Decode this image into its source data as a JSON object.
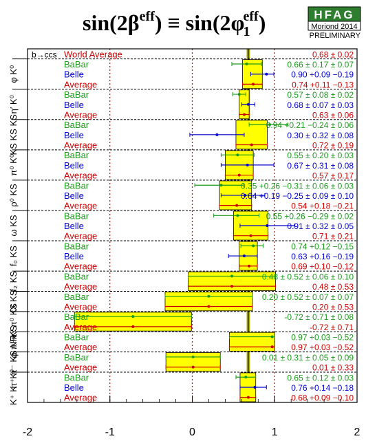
{
  "header": {
    "title_main": "sin(2β",
    "title_sup1": "eff",
    "title_mid": ") ≡ sin(2φ",
    "title_sub": "1",
    "title_sup2": "eff",
    "title_end": ")",
    "logo_text": "HFAG",
    "logo_sub": "Moriond 2014",
    "preliminary": "PRELIMINARY"
  },
  "colors": {
    "babar": "#1a9a1a",
    "belle": "#0000cc",
    "average": "#cc0000",
    "band": "#ffff00",
    "world_band": "#aaaa00",
    "logo_bg": "#2f7d2f"
  },
  "chart_data": {
    "type": "scatter",
    "xlim": [
      -2,
      2
    ],
    "x_ticks": [
      "-2",
      "-1",
      "0",
      "1",
      "2"
    ],
    "process_label": "b→ccs",
    "world_average": {
      "label": "World Average",
      "text": "0.68 ± 0.02",
      "value": 0.68,
      "error": 0.02
    },
    "groups": [
      {
        "label": "φ K⁰",
        "rows": [
          {
            "exp": "BaBar",
            "text": "0.66 ± 0.17 ± 0.07",
            "value": 0.66,
            "err": 0.18
          },
          {
            "exp": "Belle",
            "text": "0.90 +0.09 −0.19",
            "value": 0.9,
            "el": 0.19,
            "eh": 0.09
          },
          {
            "exp": "Average",
            "text": "0.74 +0.11 −0.13",
            "value": 0.74,
            "el": 0.13,
            "eh": 0.11
          }
        ]
      },
      {
        "label": "η′ K⁰",
        "rows": [
          {
            "exp": "BaBar",
            "text": "0.57 ± 0.08 ± 0.02",
            "value": 0.57,
            "err": 0.08
          },
          {
            "exp": "Belle",
            "text": "0.68 ± 0.07 ± 0.03",
            "value": 0.68,
            "err": 0.08
          },
          {
            "exp": "Average",
            "text": "0.63 ± 0.06",
            "value": 0.63,
            "err": 0.06
          }
        ]
      },
      {
        "label": "KS KS KS",
        "rows": [
          {
            "exp": "BaBar",
            "text": "0.94 +0.21 −0.24 ± 0.06",
            "value": 0.94,
            "el": 0.25,
            "eh": 0.22
          },
          {
            "exp": "Belle",
            "text": "0.30 ± 0.32 ± 0.08",
            "value": 0.3,
            "err": 0.33
          },
          {
            "exp": "Average",
            "text": "0.72 ± 0.19",
            "value": 0.72,
            "err": 0.19
          }
        ]
      },
      {
        "label": "π⁰ K⁰",
        "rows": [
          {
            "exp": "BaBar",
            "text": "0.55 ± 0.20 ± 0.03",
            "value": 0.55,
            "err": 0.2
          },
          {
            "exp": "Belle",
            "text": "0.67 ± 0.31 ± 0.08",
            "value": 0.67,
            "err": 0.32
          },
          {
            "exp": "Average",
            "text": "0.57 ± 0.17",
            "value": 0.57,
            "err": 0.17
          }
        ]
      },
      {
        "label": "ρ⁰ KS",
        "rows": [
          {
            "exp": "BaBar",
            "text": "0.35 +0.26 −0.31 ± 0.06 ± 0.03",
            "value": 0.35,
            "el": 0.32,
            "eh": 0.27
          },
          {
            "exp": "Belle",
            "text": "0.64 +0.19 −0.25 ± 0.09 ± 0.10",
            "value": 0.64,
            "el": 0.29,
            "eh": 0.24
          },
          {
            "exp": "Average",
            "text": "0.54 +0.18 −0.21",
            "value": 0.54,
            "el": 0.21,
            "eh": 0.18
          }
        ]
      },
      {
        "label": "ω KS",
        "rows": [
          {
            "exp": "BaBar",
            "text": "0.55 +0.26 −0.29 ± 0.02",
            "value": 0.55,
            "el": 0.29,
            "eh": 0.26
          },
          {
            "exp": "Belle",
            "text": "0.91 ± 0.32 ± 0.05",
            "value": 0.91,
            "err": 0.33
          },
          {
            "exp": "Average",
            "text": "0.71 ± 0.21",
            "value": 0.71,
            "err": 0.21
          }
        ]
      },
      {
        "label": "f₀ KS",
        "rows": [
          {
            "exp": "BaBar",
            "text": "0.74 +0.12 −0.15",
            "value": 0.74,
            "el": 0.15,
            "eh": 0.12
          },
          {
            "exp": "Belle",
            "text": "0.63 +0.16 −0.19",
            "value": 0.63,
            "el": 0.19,
            "eh": 0.16
          },
          {
            "exp": "Average",
            "text": "0.69 +0.10 −0.12",
            "value": 0.69,
            "el": 0.12,
            "eh": 0.1
          }
        ]
      },
      {
        "label": "f₂ KS",
        "rows": [
          {
            "exp": "BaBar",
            "text": "0.48 ± 0.52 ± 0.06 ± 0.10",
            "value": 0.48,
            "err": 0.53
          },
          {
            "exp": "Average",
            "text": "0.48 ± 0.53",
            "value": 0.48,
            "err": 0.53
          }
        ]
      },
      {
        "label": "fX KS",
        "rows": [
          {
            "exp": "BaBar",
            "text": "0.20 ± 0.52 ± 0.07 ± 0.07",
            "value": 0.2,
            "err": 0.53
          },
          {
            "exp": "Average",
            "text": "0.20 ± 0.53",
            "value": 0.2,
            "err": 0.53
          }
        ]
      },
      {
        "label": "π⁰ π⁰ KS",
        "rows": [
          {
            "exp": "BaBar",
            "text": "-0.72 ± 0.71 ± 0.08",
            "value": -0.72,
            "err": 0.71
          },
          {
            "exp": "Average",
            "text": "-0.72 ± 0.71",
            "value": -0.72,
            "err": 0.71
          }
        ]
      },
      {
        "label": "φ π⁰ KS",
        "rows": [
          {
            "exp": "BaBar",
            "text": "0.97 +0.03 −0.52",
            "value": 0.97,
            "el": 0.52,
            "eh": 0.03
          },
          {
            "exp": "Average",
            "text": "0.97 +0.03 −0.52",
            "value": 0.97,
            "el": 0.52,
            "eh": 0.03
          }
        ]
      },
      {
        "label": "π⁺ π⁻ KS NR",
        "rows": [
          {
            "exp": "BaBar",
            "text": "0.01 ± 0.31 ± 0.05 ± 0.09",
            "value": 0.01,
            "err": 0.33
          },
          {
            "exp": "Average",
            "text": "0.01 ± 0.33",
            "value": 0.01,
            "err": 0.33
          }
        ]
      },
      {
        "label": "K⁺ K⁻ K⁰",
        "rows": [
          {
            "exp": "BaBar",
            "text": "0.65 ± 0.12 ± 0.03",
            "value": 0.65,
            "err": 0.12
          },
          {
            "exp": "Belle",
            "text": "0.76 +0.14 −0.18",
            "value": 0.76,
            "el": 0.18,
            "eh": 0.14
          },
          {
            "exp": "Average",
            "text": "0.68 +0.09 −0.10",
            "value": 0.68,
            "el": 0.1,
            "eh": 0.09
          }
        ]
      }
    ]
  }
}
